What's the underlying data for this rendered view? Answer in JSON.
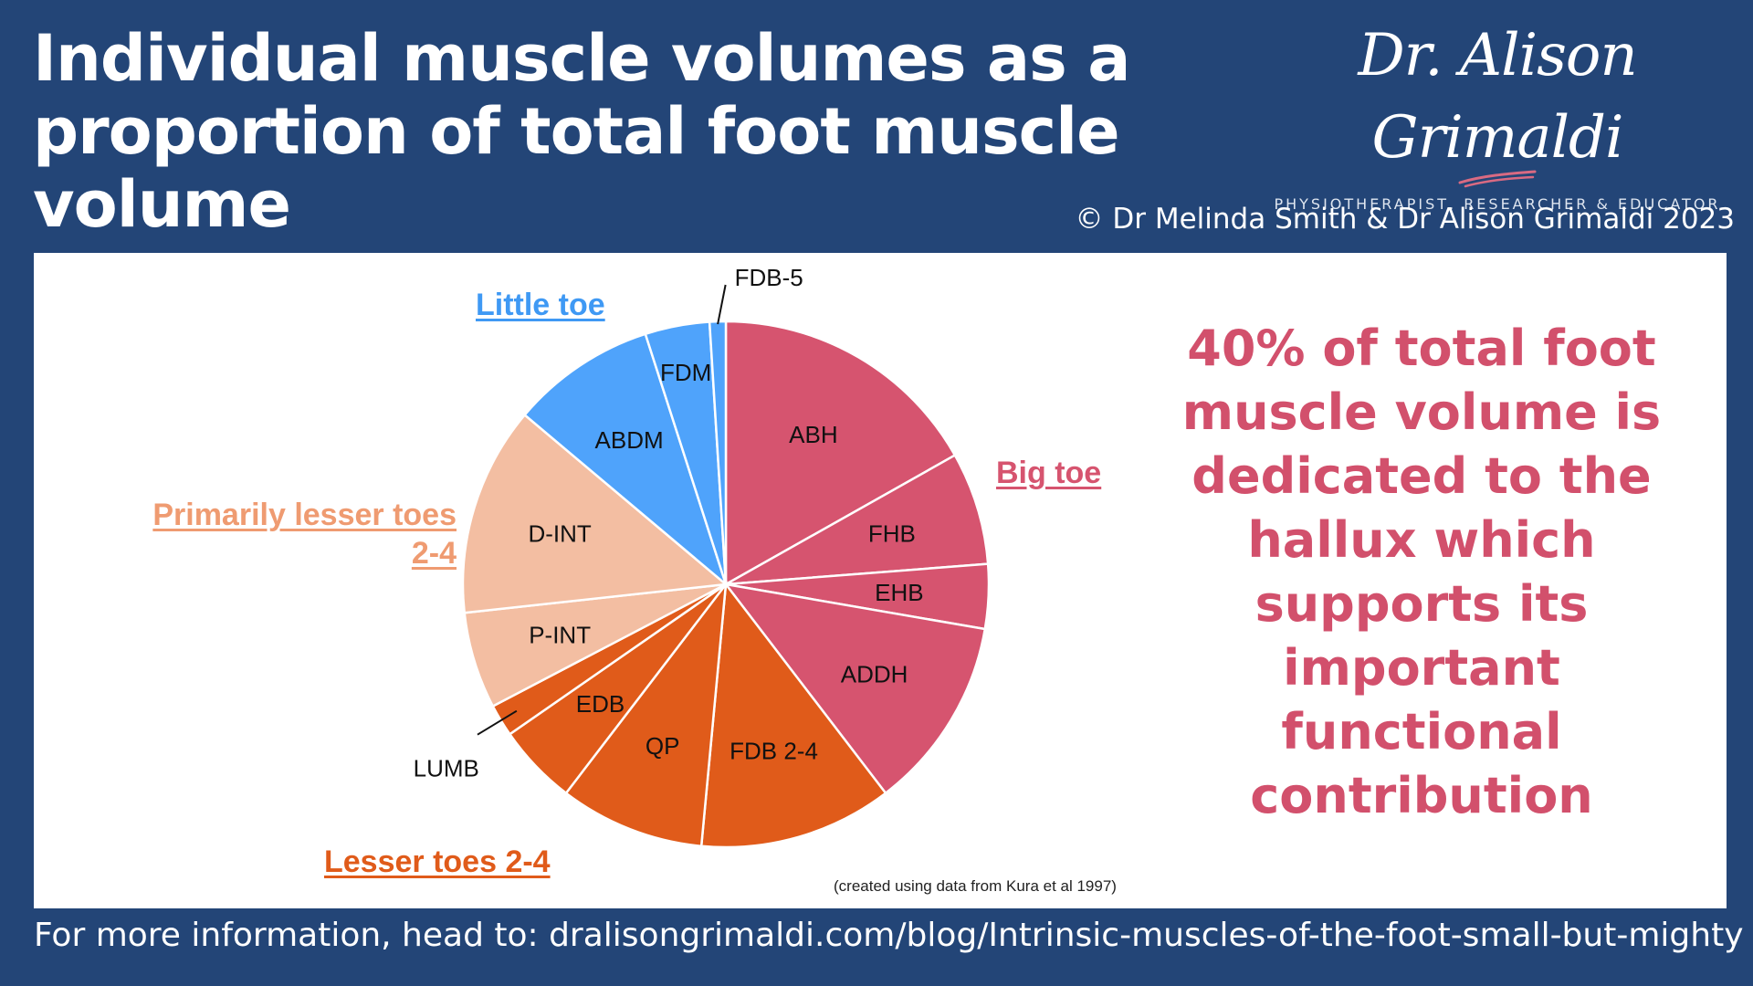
{
  "header": {
    "title": "Individual muscle volumes as a proportion of total foot muscle volume",
    "copyright": "© Dr Melinda Smith & Dr Alison Grimaldi 2023"
  },
  "brand": {
    "name": "Dr. Alison Grimaldi",
    "tagline": "PHYSIOTHERAPIST, RESEARCHER & EDUCATOR",
    "accent_color": "#d96a82"
  },
  "callout": {
    "text": "40% of total foot muscle volume is dedicated to the hallux which supports its important functional contribution",
    "color": "#d2506c"
  },
  "chart_note": "(created using data from Kura et al 1997)",
  "footer": {
    "text": "For more information, head to: dralisongrimaldi.com/blog/Intrinsic-muscles-of-the-foot-small-but-mighty"
  },
  "colors": {
    "background": "#234577",
    "big_toe": "#d6546f",
    "lesser_toes": "#e05b1a",
    "primarily_lesser": "#f3bea2",
    "little_toe": "#4fa3fb"
  },
  "chart_data": {
    "type": "pie",
    "title": "",
    "unit": "percent of total foot muscle volume",
    "groups": [
      {
        "key": "big_toe",
        "label": "Big toe",
        "color": "#d6546f",
        "label_color": "#d6546f"
      },
      {
        "key": "lesser_toes",
        "label": "Lesser toes 2-4",
        "color": "#e05b1a",
        "label_color": "#e05b1a"
      },
      {
        "key": "primarily_lesser",
        "label": "Primarily lesser toes 2-4",
        "color": "#f3bea2",
        "label_color": "#ef9b71"
      },
      {
        "key": "little_toe",
        "label": "Little toe",
        "color": "#4fa3fb",
        "label_color": "#3f99f4"
      }
    ],
    "slices": [
      {
        "label": "ABH",
        "value": 17,
        "group": "big_toe"
      },
      {
        "label": "FHB",
        "value": 7,
        "group": "big_toe"
      },
      {
        "label": "EHB",
        "value": 4,
        "group": "big_toe"
      },
      {
        "label": "ADDH",
        "value": 12,
        "group": "big_toe"
      },
      {
        "label": "FDB 2-4",
        "value": 12,
        "group": "lesser_toes"
      },
      {
        "label": "QP",
        "value": 9,
        "group": "lesser_toes"
      },
      {
        "label": "EDB",
        "value": 5,
        "group": "lesser_toes"
      },
      {
        "label": "LUMB",
        "value": 2,
        "group": "lesser_toes"
      },
      {
        "label": "P-INT",
        "value": 6,
        "group": "primarily_lesser"
      },
      {
        "label": "D-INT",
        "value": 13,
        "group": "primarily_lesser"
      },
      {
        "label": "ABDM",
        "value": 9,
        "group": "little_toe"
      },
      {
        "label": "FDM",
        "value": 4,
        "group": "little_toe"
      },
      {
        "label": "FDB-5",
        "value": 1,
        "group": "little_toe"
      }
    ]
  }
}
